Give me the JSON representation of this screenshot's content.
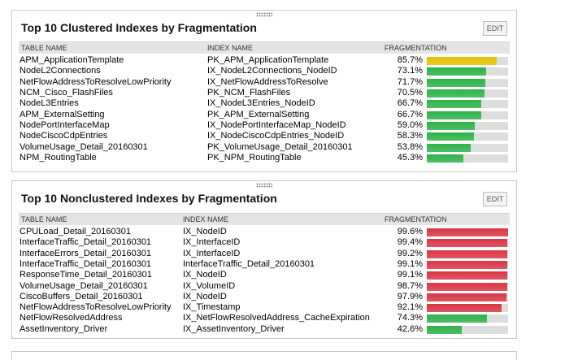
{
  "panels": [
    {
      "title": "Top 10 Clustered Indexes by Fragmentation",
      "edit": "EDIT",
      "headers": [
        "TABLE NAME",
        "INDEX NAME",
        "FRAGMENTATION"
      ],
      "rows": [
        {
          "table": "APM_ApplicationTemplate",
          "index": "PK_APM_ApplicationTemplate",
          "fragmentation": 85.7,
          "fragmentation_label": "85.7%",
          "bar_color": "#e6c300"
        },
        {
          "table": "NodeL2Connections",
          "index": "IX_NodeL2Connections_NodeID",
          "fragmentation": 73.1,
          "fragmentation_label": "73.1%",
          "bar_color": "#2db34a"
        },
        {
          "table": "NetFlowAddressToResolveLowPriority",
          "index": "IX_NetFlowAddressToResolve",
          "fragmentation": 71.7,
          "fragmentation_label": "71.7%",
          "bar_color": "#2db34a"
        },
        {
          "table": "NCM_Cisco_FlashFiles",
          "index": "PK_NCM_FlashFiles",
          "fragmentation": 70.5,
          "fragmentation_label": "70.5%",
          "bar_color": "#2db34a"
        },
        {
          "table": "NodeL3Entries",
          "index": "IX_NodeL3Entries_NodeID",
          "fragmentation": 66.7,
          "fragmentation_label": "66.7%",
          "bar_color": "#2db34a"
        },
        {
          "table": "APM_ExternalSetting",
          "index": "PK_APM_ExternalSetting",
          "fragmentation": 66.7,
          "fragmentation_label": "66.7%",
          "bar_color": "#2db34a"
        },
        {
          "table": "NodePortInterfaceMap",
          "index": "IX_NodePortInterfaceMap_NodeID",
          "fragmentation": 59.0,
          "fragmentation_label": "59.0%",
          "bar_color": "#2db34a"
        },
        {
          "table": "NodeCiscoCdpEntries",
          "index": "IX_NodeCiscoCdpEntries_NodeID",
          "fragmentation": 58.3,
          "fragmentation_label": "58.3%",
          "bar_color": "#2db34a"
        },
        {
          "table": "VolumeUsage_Detail_20160301",
          "index": "PK_VolumeUsage_Detail_20160301",
          "fragmentation": 53.8,
          "fragmentation_label": "53.8%",
          "bar_color": "#2db34a"
        },
        {
          "table": "NPM_RoutingTable",
          "index": "PK_NPM_RoutingTable",
          "fragmentation": 45.3,
          "fragmentation_label": "45.3%",
          "bar_color": "#2db34a"
        }
      ]
    },
    {
      "title": "Top 10 Nonclustered Indexes by Fragmentation",
      "edit": "EDIT",
      "headers": [
        "TABLE NAME",
        "INDEX NAME",
        "FRAGMENTATION"
      ],
      "rows": [
        {
          "table": "CPULoad_Detail_20160301",
          "index": "IX_NodeID",
          "fragmentation": 99.6,
          "fragmentation_label": "99.6%",
          "bar_color": "#dc3545"
        },
        {
          "table": "InterfaceTraffic_Detail_20160301",
          "index": "IX_InterfaceID",
          "fragmentation": 99.4,
          "fragmentation_label": "99.4%",
          "bar_color": "#dc3545"
        },
        {
          "table": "InterfaceErrors_Detail_20160301",
          "index": "IX_InterfaceID",
          "fragmentation": 99.2,
          "fragmentation_label": "99.2%",
          "bar_color": "#dc3545"
        },
        {
          "table": "InterfaceTraffic_Detail_20160301",
          "index": "InterfaceTraffic_Detail_20160301",
          "fragmentation": 99.1,
          "fragmentation_label": "99.1%",
          "bar_color": "#dc3545"
        },
        {
          "table": "ResponseTime_Detail_20160301",
          "index": "IX_NodeID",
          "fragmentation": 99.1,
          "fragmentation_label": "99.1%",
          "bar_color": "#dc3545"
        },
        {
          "table": "VolumeUsage_Detail_20160301",
          "index": "IX_VolumeID",
          "fragmentation": 98.7,
          "fragmentation_label": "98.7%",
          "bar_color": "#dc3545"
        },
        {
          "table": "CiscoBuffers_Detail_20160301",
          "index": "IX_NodeID",
          "fragmentation": 97.9,
          "fragmentation_label": "97.9%",
          "bar_color": "#dc3545"
        },
        {
          "table": "NetFlowAddressToResolveLowPriority",
          "index": "IX_Timestamp",
          "fragmentation": 92.1,
          "fragmentation_label": "92.1%",
          "bar_color": "#dc3545"
        },
        {
          "table": "NetFlowResolvedAddress",
          "index": "IX_NetFlowResolvedAddress_CacheExpiration",
          "fragmentation": 74.3,
          "fragmentation_label": "74.3%",
          "bar_color": "#2db34a"
        },
        {
          "table": "AssetInventory_Driver",
          "index": "IX_AssetInventory_Driver",
          "fragmentation": 42.6,
          "fragmentation_label": "42.6%",
          "bar_color": "#2db34a"
        }
      ]
    }
  ]
}
